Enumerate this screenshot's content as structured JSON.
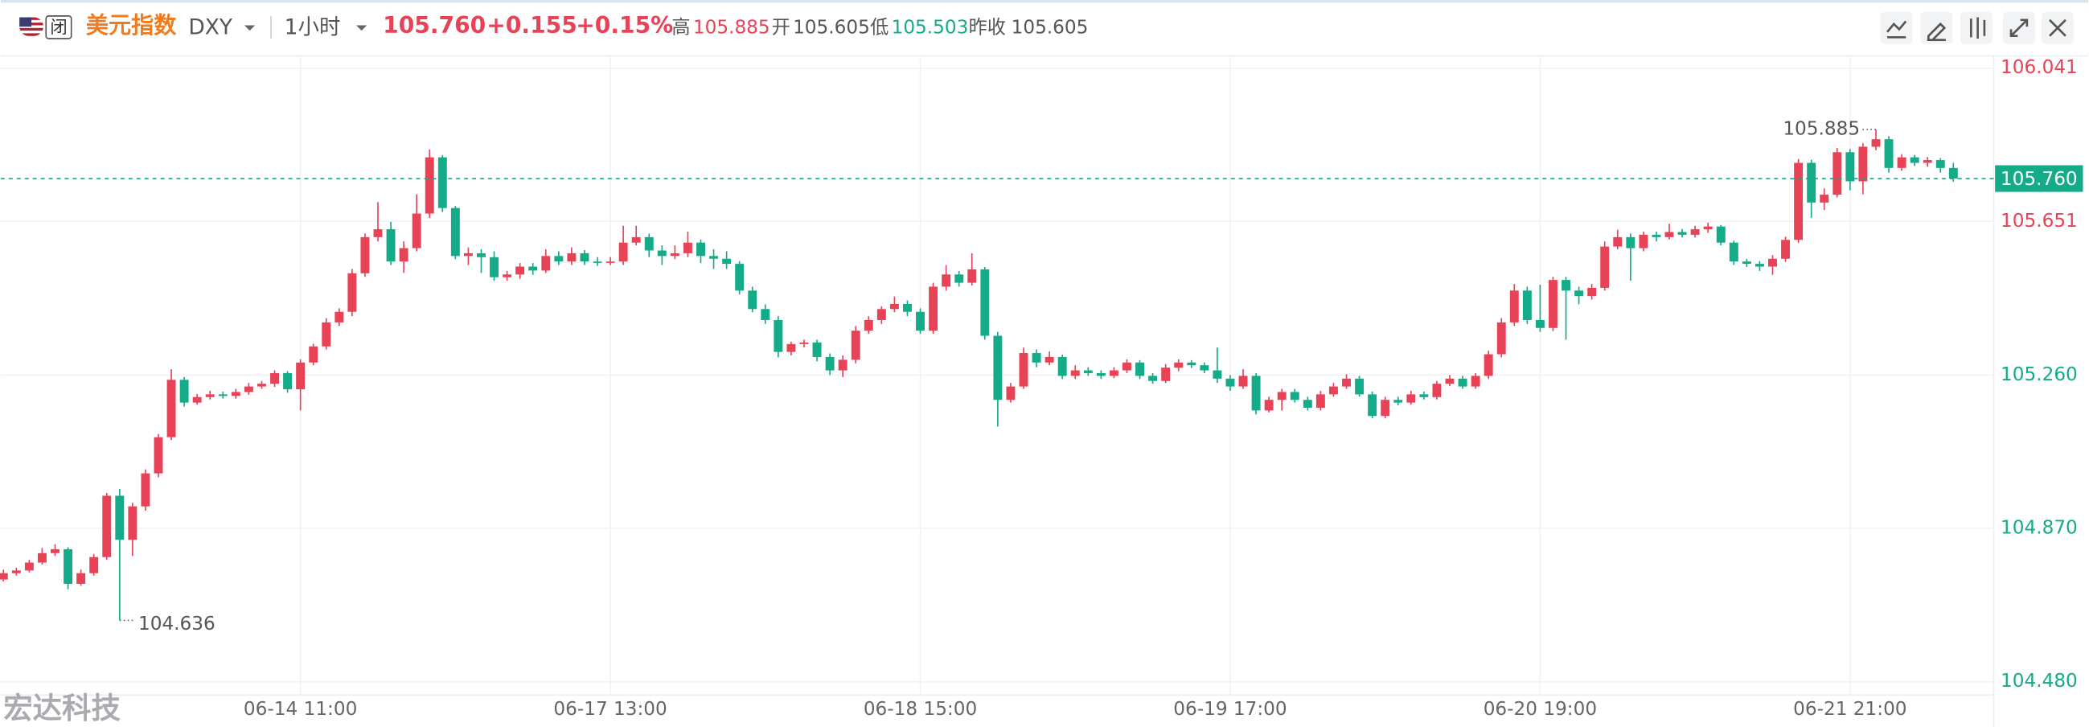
{
  "header": {
    "market_status": "闭",
    "name": "美元指数",
    "symbol": "DXY",
    "interval": "1小时",
    "price": "105.760",
    "change": "+0.155",
    "change_pct": "+0.15%",
    "high_label": "高",
    "high": "105.885",
    "open_label": "开",
    "open": "105.605",
    "low_label": "低",
    "low": "105.503",
    "prev_close_label": "昨收",
    "prev_close": "105.605"
  },
  "watermark": "宏达科技",
  "chart_data": {
    "type": "candlestick",
    "up_color": "#e84257",
    "down_color": "#14ab88",
    "grid": true,
    "ylim": [
      104.446,
      106.072
    ],
    "yticks": [
      {
        "value": 104.48,
        "label": "104.480"
      },
      {
        "value": 104.87,
        "label": "104.870"
      },
      {
        "value": 105.26,
        "label": "105.260"
      },
      105.651,
      106.041
    ],
    "last_price": {
      "value": 105.76,
      "label": "105.760"
    },
    "annotations": [
      "105.885",
      "104.636"
    ],
    "categories": [
      null,
      null,
      null,
      null,
      null,
      null,
      null,
      null,
      null,
      null,
      null,
      null,
      null,
      null,
      null,
      null,
      null,
      null,
      null,
      null,
      null,
      null,
      null,
      "06-14 11:00",
      null,
      null,
      null,
      null,
      null,
      null,
      null,
      null,
      null,
      null,
      null,
      null,
      null,
      null,
      null,
      null,
      null,
      null,
      null,
      null,
      null,
      null,
      null,
      "06-17 13:00",
      null,
      null,
      null,
      null,
      null,
      null,
      null,
      null,
      null,
      null,
      null,
      null,
      null,
      null,
      null,
      null,
      null,
      null,
      null,
      null,
      null,
      null,
      null,
      "06-18 15:00",
      null,
      null,
      null,
      null,
      null,
      null,
      null,
      null,
      null,
      null,
      null,
      null,
      null,
      null,
      null,
      null,
      null,
      null,
      null,
      null,
      null,
      null,
      null,
      "06-19 17:00",
      null,
      null,
      null,
      null,
      null,
      null,
      null,
      null,
      null,
      null,
      null,
      null,
      null,
      null,
      null,
      null,
      null,
      null,
      null,
      null,
      null,
      null,
      null,
      "06-20 19:00",
      null,
      null,
      null,
      null,
      null,
      null,
      null,
      null,
      null,
      null,
      null,
      null,
      null,
      null,
      null,
      null,
      null,
      null,
      null,
      null,
      null,
      null,
      null,
      "06-21 21:00",
      null,
      null,
      null,
      null,
      null,
      null,
      null,
      null
    ],
    "ohlc": [
      [
        104.74,
        104.765,
        104.735,
        104.756
      ],
      [
        104.756,
        104.77,
        104.75,
        104.763
      ],
      [
        104.763,
        104.79,
        104.758,
        104.783
      ],
      [
        104.783,
        104.82,
        104.778,
        104.807
      ],
      [
        104.807,
        104.83,
        104.8,
        104.817
      ],
      [
        104.817,
        104.822,
        104.715,
        104.729
      ],
      [
        104.729,
        104.765,
        104.724,
        104.756
      ],
      [
        104.756,
        104.805,
        104.75,
        104.797
      ],
      [
        104.797,
        104.96,
        104.79,
        104.953
      ],
      [
        104.953,
        104.97,
        104.636,
        104.841
      ],
      [
        104.841,
        104.935,
        104.8,
        104.926
      ],
      [
        104.926,
        105.02,
        104.915,
        105.01
      ],
      [
        105.01,
        105.11,
        105.0,
        105.102
      ],
      [
        105.102,
        105.275,
        105.095,
        105.248
      ],
      [
        105.248,
        105.255,
        105.18,
        105.19
      ],
      [
        105.19,
        105.212,
        105.185,
        105.204
      ],
      [
        105.204,
        105.22,
        105.198,
        105.211
      ],
      [
        105.211,
        105.218,
        105.2,
        105.207
      ],
      [
        105.207,
        105.225,
        105.2,
        105.217
      ],
      [
        105.217,
        105.24,
        105.21,
        105.231
      ],
      [
        105.231,
        105.245,
        105.225,
        105.238
      ],
      [
        105.238,
        105.272,
        105.23,
        105.265
      ],
      [
        105.265,
        105.27,
        105.215,
        105.224
      ],
      [
        105.224,
        105.3,
        105.17,
        105.292
      ],
      [
        105.292,
        105.34,
        105.285,
        105.333
      ],
      [
        105.333,
        105.405,
        105.325,
        105.394
      ],
      [
        105.394,
        105.43,
        105.385,
        105.421
      ],
      [
        105.421,
        105.53,
        105.41,
        105.519
      ],
      [
        105.519,
        105.62,
        105.51,
        105.611
      ],
      [
        105.611,
        105.7,
        105.6,
        105.631
      ],
      [
        105.631,
        105.65,
        105.54,
        105.549
      ],
      [
        105.549,
        105.6,
        105.52,
        105.583
      ],
      [
        105.583,
        105.72,
        105.575,
        105.671
      ],
      [
        105.671,
        105.834,
        105.66,
        105.814
      ],
      [
        105.814,
        105.82,
        105.675,
        105.685
      ],
      [
        105.685,
        105.69,
        105.555,
        105.563
      ],
      [
        105.563,
        105.585,
        105.54,
        105.57
      ],
      [
        105.57,
        105.58,
        105.52,
        105.56
      ],
      [
        105.56,
        105.575,
        105.5,
        105.509
      ],
      [
        105.509,
        105.525,
        105.5,
        105.516
      ],
      [
        105.516,
        105.545,
        105.505,
        105.536
      ],
      [
        105.536,
        105.545,
        105.515,
        105.526
      ],
      [
        105.526,
        105.58,
        105.52,
        105.563
      ],
      [
        105.563,
        105.575,
        105.54,
        105.549
      ],
      [
        105.549,
        105.585,
        105.54,
        105.57
      ],
      [
        105.57,
        105.578,
        105.54,
        105.549
      ],
      [
        105.549,
        105.56,
        105.538,
        105.546
      ],
      [
        105.546,
        105.56,
        105.54,
        105.549
      ],
      [
        105.549,
        105.64,
        105.54,
        105.597
      ],
      [
        105.597,
        105.64,
        105.59,
        105.611
      ],
      [
        105.611,
        105.62,
        105.56,
        105.577
      ],
      [
        105.577,
        105.59,
        105.54,
        105.563
      ],
      [
        105.563,
        105.59,
        105.555,
        105.57
      ],
      [
        105.57,
        105.625,
        105.56,
        105.597
      ],
      [
        105.597,
        105.605,
        105.545,
        105.563
      ],
      [
        105.563,
        105.58,
        105.53,
        105.556
      ],
      [
        105.556,
        105.575,
        105.53,
        105.543
      ],
      [
        105.543,
        105.55,
        105.465,
        105.475
      ],
      [
        105.475,
        105.485,
        105.42,
        105.428
      ],
      [
        105.428,
        105.44,
        105.39,
        105.4
      ],
      [
        105.4,
        105.41,
        105.305,
        105.319
      ],
      [
        105.319,
        105.345,
        105.31,
        105.339
      ],
      [
        105.339,
        105.35,
        105.33,
        105.343
      ],
      [
        105.343,
        105.35,
        105.295,
        105.306
      ],
      [
        105.306,
        105.315,
        105.26,
        105.272
      ],
      [
        105.272,
        105.31,
        105.255,
        105.299
      ],
      [
        105.299,
        105.385,
        105.29,
        105.373
      ],
      [
        105.373,
        105.41,
        105.365,
        105.4
      ],
      [
        105.4,
        105.435,
        105.39,
        105.428
      ],
      [
        105.428,
        105.46,
        105.42,
        105.441
      ],
      [
        105.441,
        105.45,
        105.41,
        105.421
      ],
      [
        105.421,
        105.43,
        105.365,
        105.373
      ],
      [
        105.373,
        105.495,
        105.365,
        105.485
      ],
      [
        105.485,
        105.54,
        105.475,
        105.516
      ],
      [
        105.516,
        105.525,
        105.485,
        105.495
      ],
      [
        105.495,
        105.57,
        105.488,
        105.529
      ],
      [
        105.529,
        105.535,
        105.35,
        105.36
      ],
      [
        105.36,
        105.37,
        105.129,
        105.197
      ],
      [
        105.197,
        105.24,
        105.19,
        105.231
      ],
      [
        105.231,
        105.33,
        105.225,
        105.316
      ],
      [
        105.316,
        105.325,
        105.28,
        105.292
      ],
      [
        105.292,
        105.32,
        105.285,
        105.306
      ],
      [
        105.306,
        105.312,
        105.25,
        105.258
      ],
      [
        105.258,
        105.285,
        105.25,
        105.272
      ],
      [
        105.272,
        105.28,
        105.258,
        105.265
      ],
      [
        105.265,
        105.272,
        105.25,
        105.258
      ],
      [
        105.258,
        105.28,
        105.252,
        105.272
      ],
      [
        105.272,
        105.3,
        105.265,
        105.292
      ],
      [
        105.292,
        105.298,
        105.25,
        105.258
      ],
      [
        105.258,
        105.265,
        105.238,
        105.245
      ],
      [
        105.245,
        105.288,
        105.24,
        105.279
      ],
      [
        105.279,
        105.3,
        105.27,
        105.292
      ],
      [
        105.292,
        105.298,
        105.278,
        105.285
      ],
      [
        105.285,
        105.292,
        105.265,
        105.272
      ],
      [
        105.272,
        105.33,
        105.24,
        105.251
      ],
      [
        105.251,
        105.26,
        105.22,
        105.231
      ],
      [
        105.231,
        105.275,
        105.225,
        105.258
      ],
      [
        105.258,
        105.265,
        105.16,
        105.17
      ],
      [
        105.17,
        105.205,
        105.165,
        105.197
      ],
      [
        105.197,
        105.225,
        105.17,
        105.217
      ],
      [
        105.217,
        105.225,
        105.19,
        105.197
      ],
      [
        105.197,
        105.205,
        105.17,
        105.177
      ],
      [
        105.177,
        105.22,
        105.17,
        105.211
      ],
      [
        105.211,
        105.24,
        105.205,
        105.231
      ],
      [
        105.231,
        105.262,
        105.225,
        105.251
      ],
      [
        105.251,
        105.258,
        105.205,
        105.211
      ],
      [
        105.211,
        105.218,
        105.15,
        105.156
      ],
      [
        105.156,
        105.205,
        105.15,
        105.197
      ],
      [
        105.197,
        105.205,
        105.183,
        105.19
      ],
      [
        105.19,
        105.22,
        105.185,
        105.211
      ],
      [
        105.211,
        105.218,
        105.198,
        105.204
      ],
      [
        105.204,
        105.245,
        105.198,
        105.238
      ],
      [
        105.238,
        105.26,
        105.232,
        105.251
      ],
      [
        105.251,
        105.258,
        105.225,
        105.231
      ],
      [
        105.231,
        105.265,
        105.225,
        105.258
      ],
      [
        105.258,
        105.322,
        105.25,
        105.313
      ],
      [
        105.313,
        105.405,
        105.305,
        105.394
      ],
      [
        105.394,
        105.492,
        105.385,
        105.475
      ],
      [
        105.475,
        105.485,
        105.39,
        105.4
      ],
      [
        105.4,
        105.49,
        105.37,
        105.38
      ],
      [
        105.38,
        105.51,
        105.372,
        105.502
      ],
      [
        105.502,
        105.51,
        105.35,
        105.475
      ],
      [
        105.475,
        105.485,
        105.44,
        105.461
      ],
      [
        105.461,
        105.492,
        105.452,
        105.482
      ],
      [
        105.482,
        105.6,
        105.475,
        105.587
      ],
      [
        105.587,
        105.63,
        105.58,
        105.611
      ],
      [
        105.611,
        105.62,
        105.5,
        105.583
      ],
      [
        105.583,
        105.625,
        105.575,
        105.617
      ],
      [
        105.617,
        105.625,
        105.6,
        105.611
      ],
      [
        105.611,
        105.645,
        105.605,
        105.624
      ],
      [
        105.624,
        105.632,
        105.61,
        105.617
      ],
      [
        105.617,
        105.64,
        105.61,
        105.631
      ],
      [
        105.631,
        105.648,
        105.622,
        105.638
      ],
      [
        105.638,
        105.642,
        105.59,
        105.597
      ],
      [
        105.597,
        105.602,
        105.54,
        105.549
      ],
      [
        105.549,
        105.556,
        105.535,
        105.543
      ],
      [
        105.543,
        105.55,
        105.525,
        105.536
      ],
      [
        105.536,
        105.565,
        105.515,
        105.556
      ],
      [
        105.556,
        105.612,
        105.548,
        105.604
      ],
      [
        105.604,
        105.81,
        105.596,
        105.8
      ],
      [
        105.8,
        105.808,
        105.66,
        105.699
      ],
      [
        105.699,
        105.735,
        105.68,
        105.719
      ],
      [
        105.719,
        105.838,
        105.712,
        105.827
      ],
      [
        105.827,
        105.835,
        105.73,
        105.753
      ],
      [
        105.753,
        105.85,
        105.72,
        105.841
      ],
      [
        105.841,
        105.885,
        105.832,
        105.86
      ],
      [
        105.86,
        105.868,
        105.775,
        105.787
      ],
      [
        105.787,
        105.822,
        105.78,
        105.814
      ],
      [
        105.814,
        105.82,
        105.792,
        105.8
      ],
      [
        105.8,
        105.815,
        105.79,
        105.807
      ],
      [
        105.807,
        105.812,
        105.775,
        105.787
      ],
      [
        105.787,
        105.8,
        105.752,
        105.76
      ]
    ]
  }
}
